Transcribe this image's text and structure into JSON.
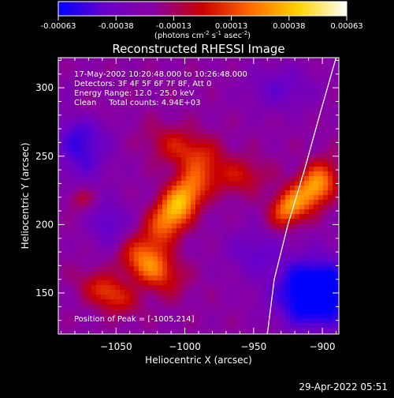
{
  "chart_data": {
    "type": "heatmap",
    "title": "Reconstructed RHESSI Image",
    "colorbar": {
      "ticks": [
        "-0.00063",
        "-0.00038",
        "-0.00013",
        "0.00013",
        "0.00038",
        "0.00063"
      ],
      "label_main": "(photons cm",
      "label_sup1": "-2",
      "label_mid1": " s",
      "label_sup2": "-1",
      "label_mid2": " asec",
      "label_sup3": "-2",
      "label_end": ")",
      "vmin": -0.00063,
      "vmax": 0.00063,
      "colormap": [
        "#0000ff",
        "#6a00c8",
        "#8a00a0",
        "#c80000",
        "#ff6a00",
        "#ffd400",
        "#ffffff"
      ]
    },
    "xlabel": "Heliocentric X (arcsec)",
    "ylabel": "Heliocentric Y (arcsec)",
    "xlim": [
      -1092,
      -888
    ],
    "ylim": [
      120,
      322
    ],
    "x_ticks": [
      -1050,
      -1000,
      -950,
      -900
    ],
    "y_ticks": [
      150,
      200,
      250,
      300
    ],
    "x_tick_labels": [
      "−1050",
      "−1000",
      "−950",
      "−900"
    ],
    "y_tick_labels": [
      "150",
      "200",
      "250",
      "300"
    ],
    "annotations": [
      "17-May-2002 10:20:48.000 to 10:26:48.000",
      "Detectors: 3F 4F 5F 6F 7F 8F, Att 0",
      "Energy Range: 12.0 - 25.0 keV",
      "Clean     Total counts: 4.94E+03"
    ],
    "peak_label": "Position of Peak = [-1005,214]",
    "peak": [
      -1005,
      214
    ],
    "grid": false,
    "limb_curve": [
      [
        -940,
        120
      ],
      [
        -935,
        160
      ],
      [
        -925,
        200
      ],
      [
        -913,
        240
      ],
      [
        -902,
        280
      ],
      [
        -890,
        322
      ]
    ],
    "hot_regions": [
      {
        "center": [
          -1005,
          214
        ],
        "sigma": [
          9,
          22
        ],
        "angle": -35,
        "amplitude": 0.00063
      },
      {
        "center": [
          -1025,
          170
        ],
        "sigma": [
          16,
          10
        ],
        "angle": -35,
        "amplitude": 0.00045
      },
      {
        "center": [
          -1055,
          150
        ],
        "sigma": [
          14,
          8
        ],
        "angle": -30,
        "amplitude": 0.00035
      },
      {
        "center": [
          -1000,
          255
        ],
        "sigma": [
          18,
          10
        ],
        "angle": -20,
        "amplitude": 0.00028
      },
      {
        "center": [
          -960,
          235
        ],
        "sigma": [
          14,
          9
        ],
        "angle": 10,
        "amplitude": 0.00022
      },
      {
        "center": [
          -905,
          228
        ],
        "sigma": [
          9,
          13
        ],
        "angle": -35,
        "amplitude": 0.00055
      },
      {
        "center": [
          -925,
          212
        ],
        "sigma": [
          8,
          10
        ],
        "angle": -35,
        "amplitude": 0.00045
      },
      {
        "center": [
          -1075,
          220
        ],
        "sigma": [
          8,
          7
        ],
        "angle": 0,
        "amplitude": 0.00018
      },
      {
        "center": [
          -1070,
          285
        ],
        "sigma": [
          10,
          8
        ],
        "angle": 0,
        "amplitude": 0.00015
      }
    ],
    "cold_regions": [
      {
        "center": [
          -905,
          150
        ],
        "sigma": [
          20,
          18
        ],
        "angle": 0,
        "amplitude": -0.0006
      },
      {
        "center": [
          -1075,
          260
        ],
        "sigma": [
          14,
          22
        ],
        "angle": 0,
        "amplitude": -0.0003
      },
      {
        "center": [
          -1055,
          200
        ],
        "sigma": [
          10,
          12
        ],
        "angle": 0,
        "amplitude": -0.00025
      },
      {
        "center": [
          -950,
          180
        ],
        "sigma": [
          14,
          12
        ],
        "angle": 0,
        "amplitude": -0.0002
      },
      {
        "center": [
          -930,
          300
        ],
        "sigma": [
          18,
          12
        ],
        "angle": 0,
        "amplitude": -0.0002
      }
    ]
  },
  "timestamp": "29-Apr-2022 05:51"
}
